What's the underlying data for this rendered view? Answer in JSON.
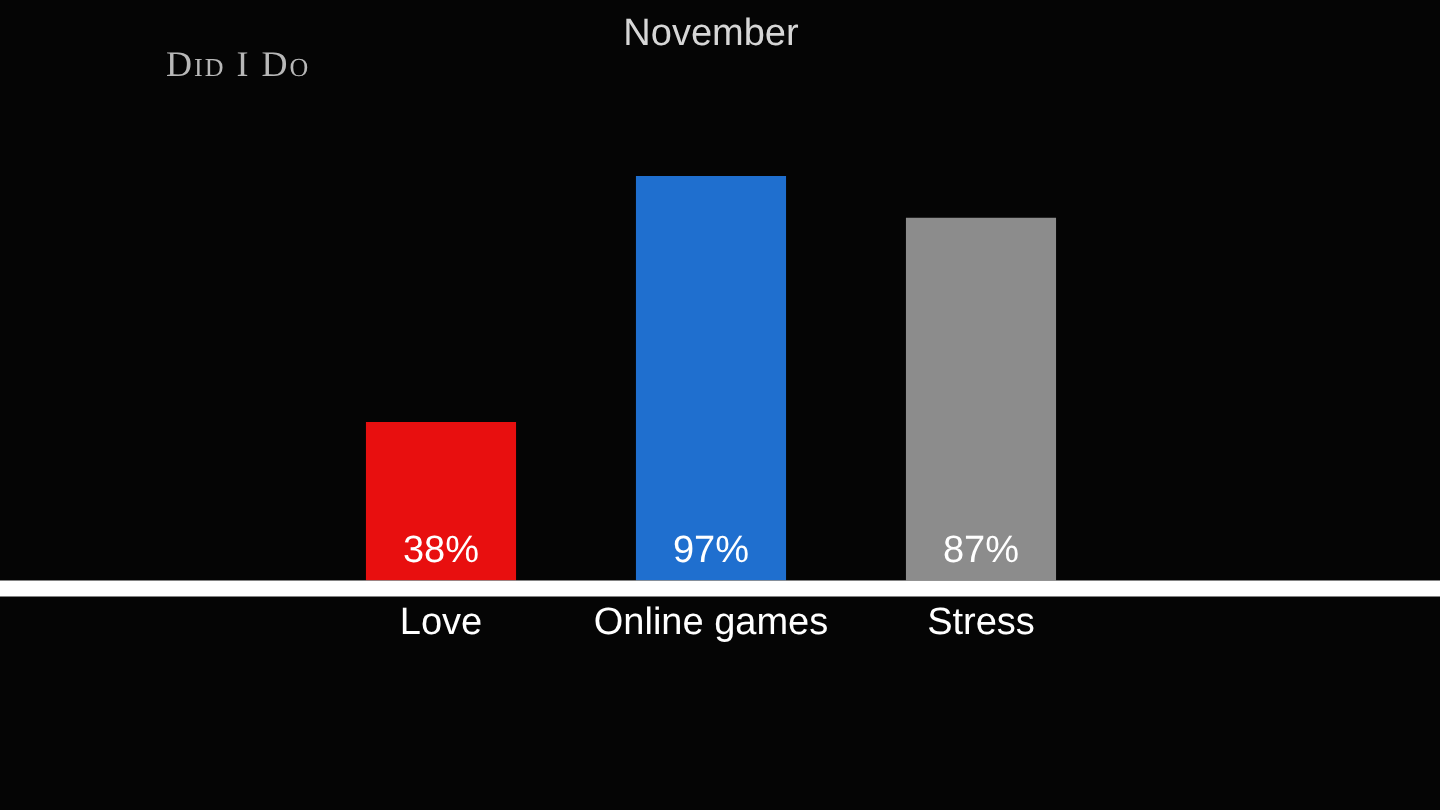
{
  "chart_data": {
    "type": "bar",
    "title": "November",
    "categories": [
      "Love",
      "Online games",
      "Stress"
    ],
    "values": [
      38,
      97,
      87
    ],
    "colors": [
      "#e80f0f",
      "#1f6fcf",
      "#8c8c8c"
    ],
    "value_labels": [
      "38%",
      "97%",
      "87%"
    ],
    "annotations": [
      "Did I Do"
    ]
  }
}
